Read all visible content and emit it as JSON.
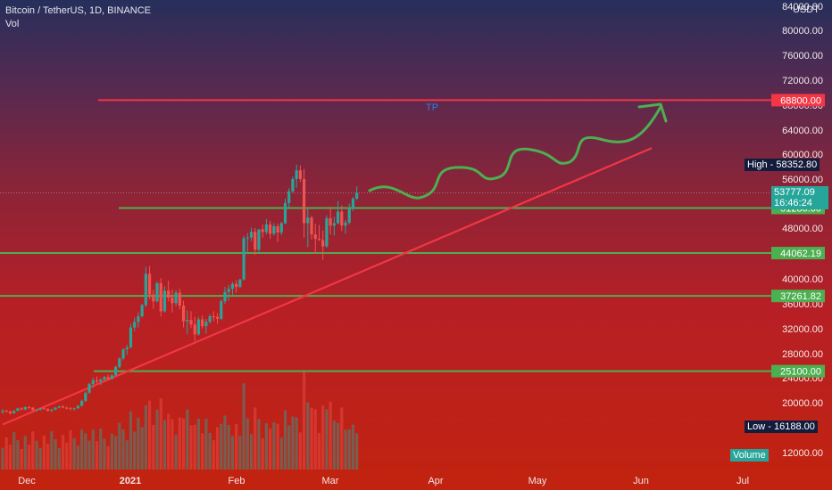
{
  "header": {
    "symbol": "Bitcoin / TetherUS, 1D, BINANCE",
    "vol": "Vol",
    "currency": "USDT"
  },
  "annotation": {
    "tp": "TP"
  },
  "chart_data": {
    "type": "candlestick",
    "title": "Bitcoin / TetherUS, 1D, BINANCE",
    "y_unit": "USDT",
    "y_ticks": [
      84000,
      80000,
      76000,
      72000,
      68000,
      64000,
      60000,
      56000,
      48000,
      40000,
      36000,
      32000,
      28000,
      24000,
      20000,
      12000
    ],
    "y_tick_labels": [
      "84000.00",
      "80000.00",
      "76000.00",
      "72000.00",
      "68000.00",
      "64000.00",
      "60000.00",
      "56000.00",
      "48000.00",
      "40000.00",
      "36000.00",
      "32000.00",
      "28000.00",
      "24000.00",
      "20000.00",
      "12000.00"
    ],
    "x_ticks": [
      "Dec",
      "2021",
      "Feb",
      "Mar",
      "Apr",
      "May",
      "Jun",
      "Jul"
    ],
    "ohlc": [
      [
        18500,
        19000,
        18200,
        18700
      ],
      [
        18700,
        18900,
        18400,
        18600
      ],
      [
        18600,
        18700,
        18100,
        18300
      ],
      [
        18300,
        18800,
        18200,
        18700
      ],
      [
        18700,
        19200,
        18600,
        19100
      ],
      [
        19100,
        19300,
        18800,
        18900
      ],
      [
        18900,
        19400,
        18800,
        19300
      ],
      [
        19300,
        19500,
        19000,
        19200
      ],
      [
        19200,
        19300,
        18700,
        18800
      ],
      [
        18800,
        19000,
        18600,
        18900
      ],
      [
        18900,
        19200,
        18700,
        19100
      ],
      [
        19100,
        19400,
        18900,
        19000
      ],
      [
        19000,
        19100,
        18600,
        18700
      ],
      [
        18700,
        19000,
        18500,
        18900
      ],
      [
        18900,
        19300,
        18800,
        19200
      ],
      [
        19200,
        19500,
        19100,
        19400
      ],
      [
        19400,
        19600,
        19100,
        19200
      ],
      [
        19200,
        19400,
        18900,
        19100
      ],
      [
        19100,
        19300,
        18800,
        19000
      ],
      [
        19000,
        19200,
        18700,
        19100
      ],
      [
        19100,
        19600,
        19000,
        19500
      ],
      [
        19500,
        20500,
        19400,
        20300
      ],
      [
        20300,
        21800,
        20100,
        21600
      ],
      [
        21600,
        23200,
        21400,
        23000
      ],
      [
        23000,
        24000,
        22400,
        23600
      ],
      [
        23600,
        24200,
        23100,
        23400
      ],
      [
        23400,
        23900,
        22800,
        23700
      ],
      [
        23700,
        24300,
        23500,
        24100
      ],
      [
        24100,
        24500,
        23600,
        23800
      ],
      [
        23800,
        24600,
        23700,
        24400
      ],
      [
        24400,
        26000,
        24300,
        25800
      ],
      [
        25800,
        27400,
        25600,
        27200
      ],
      [
        27200,
        28900,
        26900,
        28700
      ],
      [
        28700,
        29400,
        27800,
        29000
      ],
      [
        29000,
        32800,
        28900,
        32200
      ],
      [
        32200,
        33800,
        31600,
        33100
      ],
      [
        33100,
        34600,
        32200,
        34000
      ],
      [
        34000,
        36000,
        33800,
        35800
      ],
      [
        35800,
        41900,
        35500,
        40800
      ],
      [
        40800,
        42000,
        36700,
        37500
      ],
      [
        37500,
        38200,
        35200,
        36400
      ],
      [
        36400,
        39600,
        36200,
        39300
      ],
      [
        39300,
        40100,
        34000,
        34800
      ],
      [
        34800,
        38800,
        34600,
        38100
      ],
      [
        38100,
        39700,
        36400,
        37000
      ],
      [
        37000,
        38300,
        34600,
        36100
      ],
      [
        36100,
        38200,
        35600,
        37800
      ],
      [
        37800,
        38400,
        35100,
        35700
      ],
      [
        35700,
        36500,
        32200,
        33200
      ],
      [
        33200,
        34900,
        31100,
        33400
      ],
      [
        33400,
        34800,
        32100,
        32700
      ],
      [
        32700,
        33900,
        30000,
        31100
      ],
      [
        31100,
        33900,
        30900,
        33500
      ],
      [
        33500,
        34100,
        32000,
        32400
      ],
      [
        32400,
        33600,
        31200,
        33100
      ],
      [
        33100,
        34300,
        32800,
        34000
      ],
      [
        34000,
        34800,
        33200,
        33900
      ],
      [
        33900,
        34500,
        32800,
        33600
      ],
      [
        33600,
        36700,
        33400,
        36400
      ],
      [
        36400,
        38700,
        36000,
        37900
      ],
      [
        37900,
        39000,
        36500,
        38400
      ],
      [
        38400,
        39500,
        37400,
        39200
      ],
      [
        39200,
        39800,
        37800,
        38700
      ],
      [
        38700,
        40000,
        38500,
        39900
      ],
      [
        39900,
        46800,
        39700,
        46400
      ],
      [
        46400,
        47200,
        43900,
        46500
      ],
      [
        46500,
        48100,
        45900,
        47400
      ],
      [
        47400,
        48000,
        43800,
        44600
      ],
      [
        44600,
        47800,
        44100,
        47800
      ],
      [
        47800,
        48600,
        46500,
        47400
      ],
      [
        47400,
        49500,
        47000,
        48600
      ],
      [
        48600,
        49200,
        46300,
        47100
      ],
      [
        47100,
        48800,
        46800,
        48300
      ],
      [
        48300,
        48700,
        45800,
        47300
      ],
      [
        47300,
        49000,
        46900,
        48800
      ],
      [
        48800,
        52800,
        48600,
        52100
      ],
      [
        52100,
        54500,
        51300,
        54000
      ],
      [
        54000,
        56400,
        53700,
        56000
      ],
      [
        56000,
        58300,
        54600,
        57400
      ],
      [
        57400,
        58200,
        55500,
        56000
      ],
      [
        56000,
        57600,
        46500,
        48800
      ],
      [
        48800,
        51300,
        45000,
        49700
      ],
      [
        49700,
        50000,
        46200,
        47000
      ],
      [
        47000,
        48700,
        44000,
        46300
      ],
      [
        46300,
        48500,
        46000,
        46100
      ],
      [
        46100,
        47600,
        43000,
        45100
      ],
      [
        45100,
        50100,
        44900,
        49600
      ],
      [
        49600,
        51500,
        47000,
        48400
      ],
      [
        48400,
        49800,
        46800,
        48800
      ],
      [
        48800,
        52400,
        48600,
        50700
      ],
      [
        50700,
        51700,
        47500,
        48400
      ],
      [
        48400,
        49300,
        47100,
        48900
      ],
      [
        48900,
        52000,
        48600,
        51200
      ],
      [
        51200,
        53100,
        50800,
        52800
      ],
      [
        52800,
        54800,
        52600,
        53777
      ]
    ],
    "volume_trend_note": "",
    "levels": [
      {
        "label": "68800.00",
        "value": 68800,
        "color": "#f23645"
      },
      {
        "label": "51280.00",
        "value": 51280,
        "color": "#4caf50"
      },
      {
        "label": "44062.19",
        "value": 44062.19,
        "color": "#4caf50"
      },
      {
        "label": "37261.82",
        "value": 37261.82,
        "color": "#4caf50"
      },
      {
        "label": "25100.00",
        "value": 25100,
        "color": "#4caf50"
      }
    ],
    "markers": {
      "high": {
        "text": "High",
        "value": "58352.80"
      },
      "low": {
        "text": "Low",
        "value": "16188.00"
      },
      "last": {
        "value": "53777.09",
        "countdown": "16:46:24"
      },
      "volume": {
        "text": "Volume"
      }
    },
    "trendline": {
      "from": [
        0,
        16500
      ],
      "to": [
        155,
        61000
      ]
    },
    "projection": "wavy green arrow toward 68800 target",
    "colors": {
      "up": "#26a69a",
      "down": "#ef5350",
      "level_red": "#f23645",
      "level_green": "#4caf50",
      "arrow": "#4caf50"
    }
  }
}
